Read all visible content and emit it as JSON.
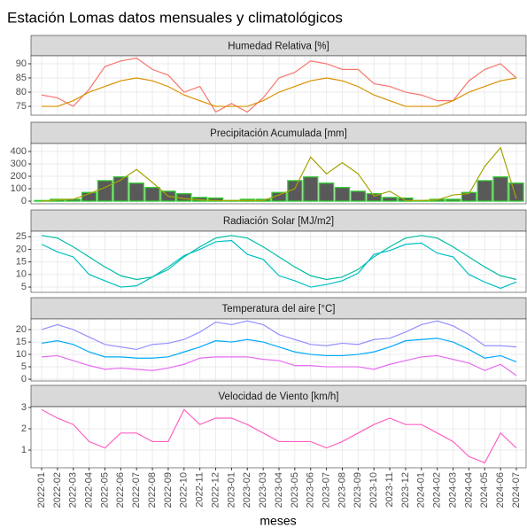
{
  "title": "Estación Lomas datos mensuales y climatológicos",
  "xlabel": "meses",
  "categories": [
    "2022-01",
    "2022-02",
    "2022-03",
    "2022-04",
    "2022-05",
    "2022-06",
    "2022-07",
    "2022-08",
    "2022-09",
    "2022-10",
    "2022-11",
    "2022-12",
    "2023-01",
    "2023-02",
    "2023-03",
    "2023-04",
    "2023-05",
    "2023-06",
    "2023-07",
    "2023-08",
    "2023-09",
    "2023-10",
    "2023-11",
    "2023-12",
    "2024-01",
    "2024-02",
    "2024-03",
    "2024-04",
    "2024-05",
    "2024-06",
    "2024-07"
  ],
  "chart_data": [
    {
      "type": "line",
      "title": "Humedad Relativa [%]",
      "ylim": [
        71.9,
        92.8
      ],
      "yticks": [
        75,
        80,
        85,
        90
      ],
      "grid": true,
      "series": [
        {
          "type": "line",
          "color": "#f8766d",
          "values": [
            79,
            78,
            75,
            81,
            89,
            91,
            92,
            88,
            86,
            80,
            82,
            73,
            76,
            73,
            78,
            85,
            87,
            91,
            90,
            88,
            88,
            83,
            82,
            80,
            79,
            77,
            77,
            84,
            88,
            90,
            85
          ]
        },
        {
          "type": "line",
          "color": "#d89000",
          "values": [
            75,
            75,
            77,
            80,
            82,
            84,
            85,
            84,
            82,
            79,
            77,
            75,
            75,
            75,
            77,
            80,
            82,
            84,
            85,
            84,
            82,
            79,
            77,
            75,
            75,
            75,
            77,
            80,
            82,
            84,
            85
          ]
        }
      ]
    },
    {
      "type": "combo",
      "title": "Precipitación Acumulada [mm]",
      "ylim": [
        -21,
        464
      ],
      "yticks": [
        0,
        100,
        200,
        300,
        400
      ],
      "grid": true,
      "series": [
        {
          "type": "bar",
          "color": "#595959",
          "outline": "#33cc33",
          "values": [
            5,
            15,
            15,
            70,
            165,
            195,
            145,
            110,
            80,
            60,
            30,
            25,
            5,
            15,
            15,
            70,
            165,
            195,
            145,
            110,
            80,
            60,
            30,
            25,
            5,
            15,
            15,
            70,
            165,
            195,
            145
          ]
        },
        {
          "type": "line",
          "color": "#a3a500",
          "values": [
            0,
            10,
            15,
            60,
            110,
            170,
            255,
            150,
            40,
            20,
            10,
            5,
            5,
            5,
            5,
            50,
            100,
            355,
            220,
            310,
            220,
            40,
            80,
            5,
            5,
            10,
            50,
            60,
            280,
            430,
            20
          ]
        }
      ]
    },
    {
      "type": "line",
      "title": "Radiación Solar [MJ/m2]",
      "ylim": [
        2.9,
        27.2
      ],
      "yticks": [
        5,
        10,
        15,
        20,
        25
      ],
      "grid": true,
      "series": [
        {
          "type": "line",
          "color": "#00bfa5",
          "values": [
            25.5,
            24.5,
            21,
            17,
            13,
            9.5,
            8,
            9,
            12,
            17,
            21,
            24.5,
            25.5,
            24.5,
            21,
            17,
            13,
            9.5,
            8,
            9,
            12,
            17,
            21,
            24.5,
            25.5,
            24.5,
            21,
            17,
            13,
            9.5,
            8
          ]
        },
        {
          "type": "line",
          "color": "#00bfc4",
          "values": [
            22,
            19,
            17,
            10,
            7.5,
            5,
            5.5,
            9,
            13,
            17.5,
            20,
            23,
            23.5,
            18,
            16,
            9.5,
            7.5,
            5,
            6,
            7.5,
            10.5,
            18,
            19.5,
            22,
            22.5,
            18.5,
            17,
            10,
            7,
            4.5,
            7
          ]
        }
      ]
    },
    {
      "type": "line",
      "title": "Temperatura del aire [°C]",
      "ylim": [
        -0.7,
        24.3
      ],
      "yticks": [
        0,
        5,
        10,
        15,
        20
      ],
      "grid": true,
      "series": [
        {
          "type": "line",
          "color": "#9590ff",
          "values": [
            20,
            22,
            20,
            17,
            14,
            13,
            12,
            14,
            14.5,
            16,
            19,
            23,
            22,
            23.5,
            22,
            18,
            16,
            14,
            13.5,
            14.5,
            14,
            16,
            16.5,
            19,
            22,
            23.5,
            21.5,
            18,
            13.5,
            13.5,
            13
          ]
        },
        {
          "type": "line",
          "color": "#00a9ff",
          "values": [
            14.5,
            15.5,
            14,
            11,
            9,
            9,
            8.5,
            8.5,
            9,
            11,
            13,
            15.5,
            15,
            16,
            15,
            13,
            11,
            10,
            9.5,
            9.5,
            10,
            11,
            13,
            15.5,
            16,
            16.5,
            15,
            12,
            8.5,
            9.5,
            7
          ]
        },
        {
          "type": "line",
          "color": "#e76bf3",
          "values": [
            9,
            9.5,
            7.5,
            5.5,
            4,
            4.5,
            4,
            3.5,
            4.5,
            6,
            8.5,
            9,
            9,
            9,
            8,
            7.5,
            5.5,
            5.5,
            5,
            5,
            5,
            4,
            6,
            7.5,
            9,
            9.5,
            8,
            6.5,
            3.5,
            6,
            1.5
          ]
        }
      ]
    },
    {
      "type": "line",
      "title": "Velocidad de Viento [km/h]",
      "ylim": [
        0.17,
        3.04
      ],
      "yticks": [
        1,
        2,
        3
      ],
      "grid": true,
      "series": [
        {
          "type": "line",
          "color": "#ff61c3",
          "values": [
            2.9,
            2.5,
            2.2,
            1.4,
            1.1,
            1.8,
            1.8,
            1.4,
            1.4,
            2.9,
            2.2,
            2.5,
            2.5,
            2.2,
            1.8,
            1.4,
            1.4,
            1.4,
            1.1,
            1.4,
            1.8,
            2.2,
            2.5,
            2.2,
            2.2,
            1.8,
            1.4,
            0.7,
            0.4,
            1.8,
            1.1
          ]
        }
      ]
    }
  ]
}
